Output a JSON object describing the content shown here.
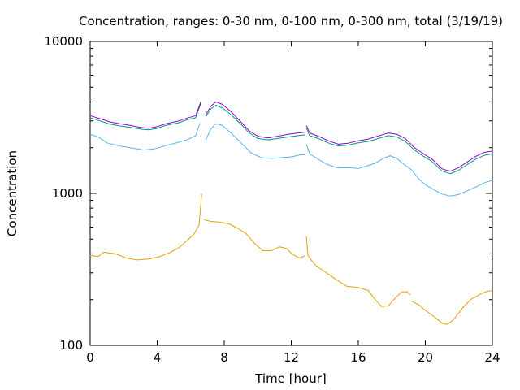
{
  "chart_data": {
    "type": "line",
    "title": "Concentration, ranges: 0-30 nm, 0-100 nm, 0-300 nm, total (3/19/19)",
    "xlabel": "Time [hour]",
    "ylabel": "Concentration",
    "xlim": [
      0,
      24
    ],
    "ylim": [
      100,
      10000
    ],
    "yscale": "log",
    "grid": false,
    "legend": "none",
    "x_ticks": [
      0,
      4,
      8,
      12,
      16,
      20,
      24
    ],
    "x_tick_labels": [
      "0",
      "4",
      "8",
      "12",
      "16",
      "20",
      "24"
    ],
    "y_ticks": [
      100,
      1000,
      10000
    ],
    "y_tick_labels": [
      "100",
      "1000",
      "10000"
    ],
    "series": [
      {
        "color": "#e69f00",
        "segments": [
          [
            [
              0,
              390
            ],
            [
              0.5,
              385
            ],
            [
              0.8,
              410
            ],
            [
              1.5,
              400
            ],
            [
              2.2,
              375
            ],
            [
              2.8,
              365
            ],
            [
              3.5,
              370
            ],
            [
              4.2,
              385
            ],
            [
              4.8,
              410
            ],
            [
              5.3,
              440
            ],
            [
              5.8,
              490
            ],
            [
              6.2,
              540
            ],
            [
              6.5,
              620
            ],
            [
              6.65,
              990
            ]
          ],
          [
            [
              6.8,
              670
            ],
            [
              7.2,
              655
            ],
            [
              7.8,
              645
            ],
            [
              8.3,
              630
            ],
            [
              8.8,
              590
            ],
            [
              9.3,
              545
            ],
            [
              9.8,
              470
            ],
            [
              10.3,
              420
            ],
            [
              10.8,
              420
            ],
            [
              11.3,
              445
            ],
            [
              11.7,
              435
            ],
            [
              12.1,
              395
            ],
            [
              12.5,
              375
            ],
            [
              12.85,
              390
            ]
          ],
          [
            [
              12.9,
              520
            ],
            [
              13.0,
              390
            ],
            [
              13.4,
              340
            ],
            [
              14.0,
              305
            ],
            [
              14.7,
              270
            ],
            [
              15.3,
              245
            ],
            [
              16.0,
              240
            ],
            [
              16.6,
              230
            ],
            [
              17.0,
              200
            ],
            [
              17.4,
              180
            ],
            [
              17.8,
              182
            ],
            [
              18.2,
              205
            ],
            [
              18.6,
              225
            ],
            [
              18.9,
              225
            ],
            [
              19.1,
              215
            ]
          ],
          [
            [
              19.2,
              195
            ],
            [
              19.6,
              185
            ],
            [
              20.0,
              170
            ],
            [
              20.5,
              155
            ],
            [
              21.0,
              140
            ],
            [
              21.3,
              137
            ],
            [
              21.7,
              148
            ],
            [
              22.2,
              175
            ],
            [
              22.7,
              200
            ],
            [
              23.2,
              215
            ],
            [
              23.6,
              225
            ],
            [
              24.0,
              230
            ]
          ]
        ]
      },
      {
        "color": "#56b4e9",
        "segments": [
          [
            [
              0,
              2450
            ],
            [
              0.5,
              2350
            ],
            [
              1.0,
              2150
            ],
            [
              1.8,
              2050
            ],
            [
              2.5,
              1990
            ],
            [
              3.2,
              1930
            ],
            [
              3.8,
              1960
            ],
            [
              4.5,
              2060
            ],
            [
              5.2,
              2160
            ],
            [
              5.8,
              2260
            ],
            [
              6.3,
              2400
            ],
            [
              6.55,
              2900
            ]
          ],
          [
            [
              6.9,
              2250
            ],
            [
              7.2,
              2650
            ],
            [
              7.5,
              2880
            ],
            [
              7.9,
              2800
            ],
            [
              8.4,
              2500
            ],
            [
              9.0,
              2150
            ],
            [
              9.6,
              1850
            ],
            [
              10.2,
              1720
            ],
            [
              10.8,
              1700
            ],
            [
              11.4,
              1720
            ],
            [
              12.0,
              1740
            ],
            [
              12.5,
              1790
            ],
            [
              12.85,
              1800
            ]
          ],
          [
            [
              12.9,
              2100
            ],
            [
              13.1,
              1820
            ],
            [
              13.6,
              1680
            ],
            [
              14.2,
              1540
            ],
            [
              14.8,
              1470
            ],
            [
              15.4,
              1480
            ],
            [
              16.0,
              1460
            ],
            [
              16.5,
              1510
            ],
            [
              17.0,
              1580
            ],
            [
              17.5,
              1700
            ],
            [
              17.9,
              1770
            ],
            [
              18.3,
              1700
            ],
            [
              18.7,
              1560
            ],
            [
              19.2,
              1420
            ],
            [
              19.6,
              1250
            ],
            [
              20.0,
              1140
            ],
            [
              20.5,
              1060
            ],
            [
              21.0,
              990
            ],
            [
              21.5,
              960
            ],
            [
              22.0,
              985
            ],
            [
              22.5,
              1040
            ],
            [
              23.0,
              1100
            ],
            [
              23.5,
              1170
            ],
            [
              24.0,
              1220
            ]
          ]
        ]
      },
      {
        "color": "#009e73",
        "segments": [
          [
            [
              0,
              3150
            ],
            [
              0.6,
              3000
            ],
            [
              1.2,
              2850
            ],
            [
              1.8,
              2780
            ],
            [
              2.4,
              2720
            ],
            [
              3.0,
              2650
            ],
            [
              3.5,
              2620
            ],
            [
              4.0,
              2680
            ],
            [
              4.5,
              2800
            ],
            [
              5.2,
              2900
            ],
            [
              5.8,
              3050
            ],
            [
              6.3,
              3150
            ],
            [
              6.6,
              3900
            ]
          ],
          [
            [
              6.9,
              3200
            ],
            [
              7.2,
              3600
            ],
            [
              7.5,
              3800
            ],
            [
              7.9,
              3650
            ],
            [
              8.4,
              3300
            ],
            [
              9.0,
              2850
            ],
            [
              9.5,
              2500
            ],
            [
              10.0,
              2300
            ],
            [
              10.6,
              2250
            ],
            [
              11.2,
              2300
            ],
            [
              11.8,
              2350
            ],
            [
              12.4,
              2400
            ],
            [
              12.85,
              2430
            ]
          ],
          [
            [
              12.9,
              2700
            ],
            [
              13.1,
              2400
            ],
            [
              13.6,
              2300
            ],
            [
              14.2,
              2150
            ],
            [
              14.8,
              2050
            ],
            [
              15.4,
              2080
            ],
            [
              16.0,
              2150
            ],
            [
              16.6,
              2200
            ],
            [
              17.2,
              2300
            ],
            [
              17.8,
              2400
            ],
            [
              18.3,
              2350
            ],
            [
              18.8,
              2200
            ],
            [
              19.3,
              1950
            ],
            [
              19.8,
              1780
            ],
            [
              20.4,
              1620
            ],
            [
              21.0,
              1400
            ],
            [
              21.5,
              1350
            ],
            [
              22.0,
              1420
            ],
            [
              22.5,
              1550
            ],
            [
              23.0,
              1680
            ],
            [
              23.5,
              1780
            ],
            [
              24.0,
              1820
            ]
          ]
        ]
      },
      {
        "color": "#9400d3",
        "segments": [
          [
            [
              0,
              3250
            ],
            [
              0.6,
              3100
            ],
            [
              1.2,
              2950
            ],
            [
              1.8,
              2870
            ],
            [
              2.4,
              2800
            ],
            [
              3.0,
              2720
            ],
            [
              3.5,
              2680
            ],
            [
              4.0,
              2750
            ],
            [
              4.5,
              2870
            ],
            [
              5.2,
              2980
            ],
            [
              5.8,
              3130
            ],
            [
              6.3,
              3250
            ],
            [
              6.6,
              4000
            ]
          ],
          [
            [
              6.9,
              3300
            ],
            [
              7.2,
              3750
            ],
            [
              7.5,
              4000
            ],
            [
              7.9,
              3850
            ],
            [
              8.4,
              3450
            ],
            [
              9.0,
              2950
            ],
            [
              9.5,
              2580
            ],
            [
              10.0,
              2380
            ],
            [
              10.6,
              2320
            ],
            [
              11.2,
              2380
            ],
            [
              11.8,
              2450
            ],
            [
              12.4,
              2500
            ],
            [
              12.85,
              2530
            ]
          ],
          [
            [
              12.9,
              2800
            ],
            [
              13.1,
              2500
            ],
            [
              13.6,
              2380
            ],
            [
              14.2,
              2220
            ],
            [
              14.8,
              2110
            ],
            [
              15.4,
              2140
            ],
            [
              16.0,
              2220
            ],
            [
              16.6,
              2280
            ],
            [
              17.2,
              2390
            ],
            [
              17.8,
              2500
            ],
            [
              18.3,
              2450
            ],
            [
              18.8,
              2300
            ],
            [
              19.3,
              2020
            ],
            [
              19.8,
              1850
            ],
            [
              20.4,
              1680
            ],
            [
              21.0,
              1450
            ],
            [
              21.5,
              1400
            ],
            [
              22.0,
              1480
            ],
            [
              22.5,
              1610
            ],
            [
              23.0,
              1750
            ],
            [
              23.5,
              1860
            ],
            [
              24.0,
              1900
            ]
          ]
        ]
      }
    ]
  }
}
